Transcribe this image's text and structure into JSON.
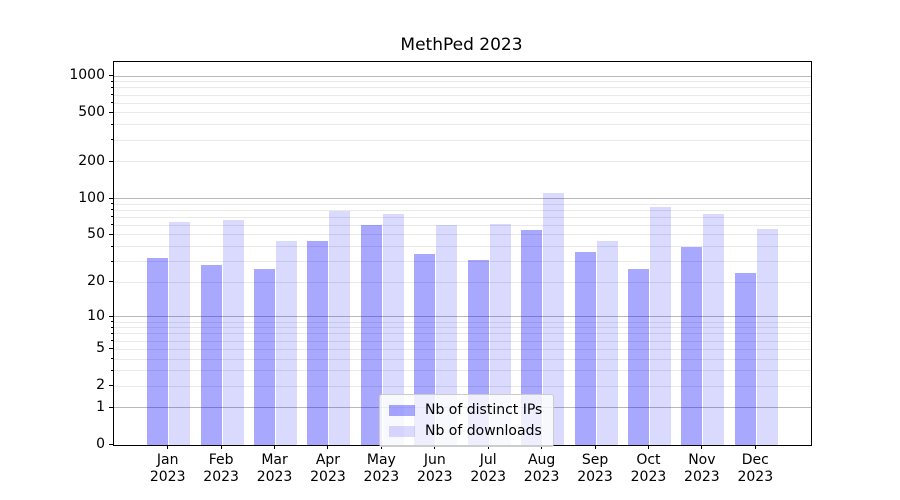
{
  "title": "MethPed 2023",
  "chart_data": {
    "type": "bar",
    "title": "MethPed 2023",
    "categories": [
      "Jan",
      "Feb",
      "Mar",
      "Apr",
      "May",
      "Jun",
      "Jul",
      "Aug",
      "Sep",
      "Oct",
      "Nov",
      "Dec"
    ],
    "year_label": "2023",
    "series": [
      {
        "name": "Nb of distinct IPs",
        "color": "rgba(0,0,255,0.34)",
        "values": [
          32,
          28,
          26,
          45,
          60,
          35,
          31,
          55,
          36,
          26,
          40,
          24
        ]
      },
      {
        "name": "Nb of downloads",
        "color": "rgba(0,0,255,0.145)",
        "values": [
          64,
          67,
          45,
          79,
          75,
          61,
          62,
          110,
          45,
          85,
          74,
          56
        ]
      }
    ],
    "xlabel": "",
    "ylabel": "",
    "yscale": "log1p",
    "ylim": [
      0,
      1300
    ],
    "yticks": [
      0,
      1,
      2,
      5,
      10,
      20,
      50,
      100,
      200,
      500,
      1000
    ],
    "grid": true,
    "grid_major_color": "#b9b9b9",
    "grid_minor_color": "#e9e9e9",
    "legend_position": "lower center",
    "legend_border_color": "#cccccc"
  }
}
